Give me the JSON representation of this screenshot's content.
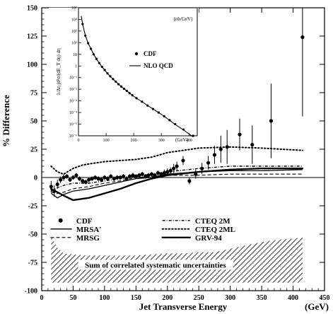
{
  "chart_data": [
    {
      "type": "scatter",
      "ylabel": "% Difference",
      "xlabel": "Jet Transverse Energy",
      "x_unit": "(GeV)",
      "xlim": [
        0,
        450
      ],
      "ylim": [
        -100,
        150
      ],
      "x_ticks": [
        0,
        50,
        100,
        150,
        200,
        250,
        300,
        350,
        400,
        450
      ],
      "y_ticks": [
        -100,
        -75,
        -50,
        -25,
        0,
        25,
        50,
        75,
        100,
        125,
        150
      ],
      "x_tick_labels": [
        "0",
        "50",
        "100",
        "150",
        "200",
        "250",
        "300",
        "350",
        "400",
        "450"
      ],
      "y_tick_labels": [
        "-100",
        "-75",
        "-50",
        "-25",
        "0",
        "25",
        "50",
        "75",
        "100",
        "125",
        "150"
      ],
      "legend": [
        "CDF",
        "MRSA'",
        "MRSG",
        "CTEQ 2M",
        "CTEQ 2ML",
        "GRV-94"
      ],
      "band_label": "Sum of correlated systematic uncertainties",
      "series": [
        {
          "name": "CDF",
          "style": "points",
          "x": [
            15,
            20,
            25,
            30,
            35,
            40,
            45,
            50,
            55,
            60,
            65,
            70,
            75,
            80,
            85,
            90,
            95,
            100,
            105,
            110,
            115,
            120,
            125,
            130,
            135,
            140,
            145,
            150,
            155,
            160,
            165,
            170,
            175,
            180,
            185,
            190,
            195,
            200,
            205,
            210,
            215,
            225,
            235,
            245,
            255,
            265,
            275,
            285,
            295,
            315,
            335,
            365,
            415
          ],
          "y": [
            -8,
            -12,
            -6,
            -2,
            0,
            1,
            -2,
            0,
            2,
            -1,
            -3,
            -4,
            -2,
            -1,
            0,
            -1,
            -2,
            0,
            -1,
            1,
            -1,
            0,
            0,
            1,
            -1,
            1,
            2,
            1,
            2,
            3,
            1,
            2,
            3,
            2,
            4,
            3,
            4,
            5,
            6,
            8,
            10,
            15,
            -3,
            3,
            8,
            13,
            20,
            25,
            27,
            38,
            29,
            50,
            124
          ],
          "yerr": [
            5,
            5,
            4,
            3,
            3,
            2,
            2,
            2,
            2,
            2,
            2,
            2,
            2,
            2,
            2,
            2,
            2,
            2,
            2,
            2,
            2,
            2,
            2,
            2,
            2,
            2,
            2,
            2,
            2,
            2,
            2,
            2,
            2,
            2,
            2,
            2,
            3,
            3,
            3,
            4,
            4,
            4,
            3,
            4,
            5,
            6,
            8,
            12,
            15,
            14,
            17,
            33,
            70
          ]
        },
        {
          "name": "MRSA'",
          "style": "solid",
          "x": [
            15,
            25,
            35,
            50,
            75,
            100,
            125,
            150,
            175,
            200,
            250,
            300,
            350,
            415
          ],
          "y": [
            -14,
            -18,
            -15,
            -12,
            -10,
            -7,
            -4,
            -1,
            0,
            3,
            5,
            6,
            6,
            7
          ]
        },
        {
          "name": "MRSG",
          "style": "dashed",
          "x": [
            15,
            25,
            35,
            50,
            75,
            100,
            125,
            150,
            175,
            200,
            250,
            300,
            350,
            415
          ],
          "y": [
            -13,
            -14,
            -13,
            -10,
            -8,
            -5,
            -3,
            0,
            1,
            2,
            2,
            3,
            3,
            3
          ]
        },
        {
          "name": "CTEQ 2M",
          "style": "dash-dot",
          "x": [
            15,
            25,
            35,
            50,
            75,
            100,
            125,
            150,
            175,
            200,
            250,
            300,
            350,
            415
          ],
          "y": [
            -12,
            -9,
            -7,
            -5,
            -5,
            -3,
            -1,
            1,
            3,
            5,
            8,
            10,
            10,
            10
          ]
        },
        {
          "name": "CTEQ 2ML",
          "style": "dotted",
          "x": [
            15,
            25,
            35,
            50,
            65,
            75,
            100,
            125,
            150,
            175,
            200,
            250,
            300,
            350,
            415
          ],
          "y": [
            10,
            5,
            3,
            8,
            11,
            12,
            14,
            15,
            16,
            18,
            22,
            26,
            27,
            26,
            24
          ]
        },
        {
          "name": "GRV-94",
          "style": "dense-dotted",
          "x": [
            15,
            25,
            35,
            50,
            75,
            100,
            125,
            150,
            175,
            200,
            250,
            300,
            350,
            415
          ],
          "y": [
            -10,
            -13,
            -16,
            -20,
            -18,
            -14,
            -10,
            -5,
            -1,
            2,
            5,
            7,
            8,
            8
          ]
        }
      ],
      "systematic_band": {
        "x": [
          15,
          25,
          35,
          50,
          75,
          100,
          125,
          150,
          175,
          200,
          225,
          250,
          275,
          300,
          325,
          350,
          375,
          400,
          415
        ],
        "upper": [
          -52,
          -62,
          -67,
          -68,
          -69,
          -69,
          -69,
          -69,
          -68,
          -67,
          -67,
          -66,
          -66,
          -63,
          -60,
          -57,
          -55,
          -54,
          -53
        ],
        "lower": [
          -93,
          -93,
          -93,
          -93,
          -93,
          -93,
          -93,
          -93,
          -93,
          -93,
          -93,
          -93,
          -93,
          -93,
          -93,
          -93,
          -93,
          -93,
          -93
        ]
      }
    },
    {
      "type": "line",
      "ylabel": "1/Δη ∫d²σ/(dE_T dη) dη",
      "y_unit": "(nb/GeV)",
      "x_unit": "(GeV)",
      "xlim": [
        0,
        430
      ],
      "ylim_log10": [
        -6,
        5
      ],
      "log_y": true,
      "x_ticks": [
        0,
        100,
        200,
        300,
        400
      ],
      "x_tick_labels": [
        "0",
        "100",
        "200",
        "300",
        "400"
      ],
      "y_tick_labels": [
        "10⁻⁶",
        "10⁻⁵",
        "10⁻⁴",
        "10⁻³",
        "10⁻²",
        "10⁻¹",
        "1",
        "10",
        "10²",
        "10³",
        "10⁴",
        "10⁵"
      ],
      "legend": [
        "CDF",
        "NLO QCD"
      ],
      "series": [
        {
          "name": "CDF",
          "style": "points",
          "x": [
            15,
            25,
            35,
            45,
            55,
            65,
            75,
            85,
            95,
            105,
            115,
            125,
            135,
            145,
            155,
            165,
            175,
            185,
            195,
            210,
            230,
            250,
            270,
            290,
            310,
            330,
            350,
            380,
            415
          ],
          "y": [
            4000,
            400,
            90,
            30,
            10,
            4,
            1.8,
            0.85,
            0.45,
            0.23,
            0.13,
            0.075,
            0.045,
            0.027,
            0.017,
            0.011,
            0.0072,
            0.0046,
            0.003,
            0.0017,
            0.00085,
            0.0004,
            0.0002,
            0.0001,
            4.8e-05,
            2.2e-05,
            1e-05,
            3.5e-06,
            1e-06
          ]
        },
        {
          "name": "NLO QCD",
          "style": "solid",
          "x": [
            10,
            15,
            25,
            35,
            45,
            55,
            65,
            75,
            85,
            95,
            105,
            115,
            125,
            135,
            145,
            155,
            165,
            175,
            185,
            195,
            210,
            230,
            250,
            270,
            290,
            310,
            330,
            350,
            380,
            415
          ],
          "y": [
            20000,
            4000,
            400,
            90,
            30,
            10,
            4,
            1.8,
            0.85,
            0.45,
            0.23,
            0.13,
            0.075,
            0.045,
            0.027,
            0.017,
            0.011,
            0.0072,
            0.0046,
            0.003,
            0.0017,
            0.00085,
            0.0004,
            0.0002,
            0.0001,
            4.8e-05,
            2.1e-05,
            9.5e-06,
            3.2e-06,
            8e-07
          ]
        }
      ]
    }
  ]
}
